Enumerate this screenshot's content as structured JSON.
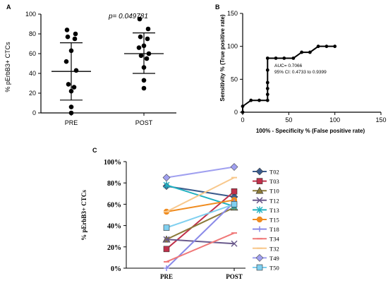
{
  "chart_data": [
    {
      "panel": "A",
      "type": "scatter",
      "ylabel": "% pErbB3+ CTCs",
      "ylim": [
        0,
        100
      ],
      "yticks": [
        0,
        20,
        40,
        60,
        80,
        100
      ],
      "categories": [
        "PRE",
        "POST"
      ],
      "annotation": "p= 0.049781",
      "annotation_color": "#e02020",
      "series": [
        {
          "category": "PRE",
          "values": [
            84,
            80,
            77,
            75,
            63,
            52,
            43,
            29,
            26,
            22,
            6,
            0
          ],
          "mean": 42,
          "sd_upper": 71,
          "sd_lower": 13
        },
        {
          "category": "POST",
          "values": [
            95,
            85,
            77,
            75,
            68,
            66,
            60,
            58,
            55,
            46,
            33,
            25
          ],
          "mean": 60,
          "sd_upper": 81,
          "sd_lower": 40
        }
      ]
    },
    {
      "panel": "B",
      "type": "line",
      "xlabel": "100% - Specificity % (False positive rate)",
      "ylabel": "Sensitivity % (True positive rate)",
      "xlim": [
        0,
        150
      ],
      "ylim": [
        0,
        150
      ],
      "xticks": [
        0,
        50,
        100,
        150
      ],
      "yticks": [
        0,
        50,
        100,
        150
      ],
      "annotation_lines": [
        "AUC= 0.7066",
        "95% CI: 0.4733 to 0.9399"
      ],
      "x": [
        0,
        0,
        9,
        18,
        27,
        27,
        27,
        27,
        27,
        27,
        36,
        45,
        55,
        64,
        73,
        82,
        91,
        100
      ],
      "y": [
        0,
        9,
        18,
        18,
        18,
        27,
        36,
        45,
        64,
        82,
        82,
        82,
        82,
        91,
        91,
        100,
        100,
        100
      ]
    },
    {
      "panel": "C",
      "type": "line",
      "ylabel": "% pErbB3+ CTCs",
      "ylim": [
        0,
        100
      ],
      "yticks": [
        "0%",
        "20%",
        "40%",
        "60%",
        "80%",
        "100%"
      ],
      "categories": [
        "PRE",
        "POST"
      ],
      "series": [
        {
          "name": "T02",
          "values": [
            77,
            67
          ],
          "color": "#3b5b8c",
          "marker": "diamond"
        },
        {
          "name": "T03",
          "values": [
            18,
            72
          ],
          "color": "#c0304a",
          "marker": "square"
        },
        {
          "name": "T10",
          "values": [
            27,
            57
          ],
          "color": "#8b7a3a",
          "marker": "triangle"
        },
        {
          "name": "T12",
          "values": [
            27,
            23
          ],
          "color": "#6a5a8c",
          "marker": "x"
        },
        {
          "name": "T13",
          "values": [
            78,
            58
          ],
          "color": "#20b0c0",
          "marker": "star"
        },
        {
          "name": "T15",
          "values": [
            53,
            64
          ],
          "color": "#f08c20",
          "marker": "circle"
        },
        {
          "name": "T18",
          "values": [
            0,
            62
          ],
          "color": "#8a8ae8",
          "marker": "plus"
        },
        {
          "name": "T34",
          "values": [
            6,
            33
          ],
          "color": "#f07878",
          "marker": "dash"
        },
        {
          "name": "T32",
          "values": [
            53,
            85
          ],
          "color": "#f8c88c",
          "marker": "dash"
        },
        {
          "name": "T49",
          "values": [
            85,
            95
          ],
          "color": "#a0a0f0",
          "marker": "diamond"
        },
        {
          "name": "T50",
          "values": [
            38,
            60
          ],
          "color": "#80d0f0",
          "marker": "square"
        }
      ]
    }
  ],
  "panel_labels": {
    "a": "A",
    "b": "B",
    "c": "C"
  }
}
